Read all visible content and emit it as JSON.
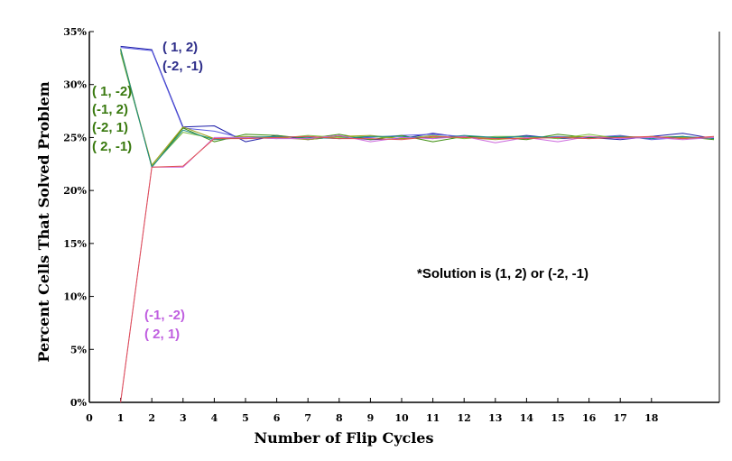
{
  "chart_data": {
    "type": "line",
    "title": "",
    "xlabel": "Number of Flip Cycles",
    "ylabel": "Percent Cells That Solved Problem",
    "xlim": [
      0,
      20
    ],
    "ylim": [
      0,
      35
    ],
    "x_ticks": [
      "0",
      "1",
      "2",
      "3",
      "4",
      "5",
      "6",
      "7",
      "8",
      "9",
      "10",
      "11",
      "12",
      "13",
      "14",
      "15",
      "16",
      "17",
      "18"
    ],
    "y_ticks": [
      {
        "value": 35,
        "label": "35%"
      },
      {
        "value": 30,
        "label": "30%"
      },
      {
        "value": 25,
        "label": "25%"
      },
      {
        "value": 20,
        "label": "20%"
      },
      {
        "value": 15,
        "label": "15%"
      },
      {
        "value": 10,
        "label": "10%"
      },
      {
        "value": 5,
        "label": "5%"
      },
      {
        "value": 0,
        "label": "0%"
      }
    ],
    "grid": false,
    "x": [
      1,
      2,
      3,
      4,
      5,
      6,
      7,
      8,
      9,
      10,
      11,
      12,
      13,
      14,
      15,
      16,
      17,
      18,
      19,
      20
    ],
    "series": [
      {
        "color": "#1c1ca8",
        "values": [
          33.6,
          33.3,
          26.0,
          26.1,
          24.6,
          25.2,
          24.8,
          25.1,
          24.8,
          24.9,
          25.4,
          25.0,
          24.9,
          25.2,
          24.9,
          25.0,
          24.8,
          25.1,
          25.4,
          24.9
        ]
      },
      {
        "color": "#5a5ae0",
        "values": [
          33.5,
          33.2,
          25.9,
          25.6,
          24.9,
          25.0,
          25.1,
          24.9,
          25.0,
          25.2,
          25.3,
          25.1,
          25.0,
          24.9,
          25.1,
          25.0,
          25.2,
          24.8,
          25.0,
          25.0
        ]
      },
      {
        "color": "#3a8c0a",
        "values": [
          33.4,
          22.2,
          25.9,
          24.6,
          25.3,
          25.2,
          24.9,
          25.3,
          24.8,
          25.2,
          24.6,
          25.1,
          25.0,
          24.8,
          25.3,
          25.0,
          25.1,
          25.0,
          25.1,
          24.8
        ]
      },
      {
        "color": "#7fbf3f",
        "values": [
          33.0,
          22.3,
          25.5,
          24.9,
          25.0,
          24.9,
          25.2,
          25.0,
          25.1,
          24.9,
          25.2,
          24.9,
          25.1,
          25.1,
          24.9,
          25.3,
          24.9,
          25.1,
          24.9,
          25.0
        ]
      },
      {
        "color": "#9e9e1a",
        "values": [
          33.2,
          22.4,
          26.0,
          24.9,
          25.1,
          25.0,
          24.8,
          25.1,
          25.2,
          24.9,
          25.0,
          25.0,
          24.8,
          25.0,
          25.0,
          25.1,
          25.0,
          25.0,
          25.0,
          25.0
        ]
      },
      {
        "color": "#1a8a8a",
        "values": [
          33.3,
          22.2,
          25.7,
          24.8,
          25.0,
          25.1,
          25.0,
          24.9,
          25.1,
          25.1,
          24.9,
          25.2,
          25.0,
          25.1,
          25.0,
          24.9,
          25.1,
          24.9,
          25.1,
          24.9
        ]
      },
      {
        "color": "#cc66dd",
        "values": [
          0.0,
          22.2,
          22.2,
          25.0,
          25.0,
          24.9,
          24.9,
          25.2,
          24.6,
          25.0,
          24.9,
          25.1,
          24.5,
          25.0,
          24.6,
          25.1,
          24.9,
          25.0,
          24.8,
          25.0
        ]
      },
      {
        "color": "#e05050",
        "values": [
          0.0,
          22.2,
          22.3,
          24.9,
          24.9,
          25.0,
          25.1,
          24.9,
          24.9,
          24.8,
          25.1,
          25.0,
          24.9,
          24.9,
          25.0,
          24.9,
          25.0,
          25.1,
          24.9,
          25.1
        ]
      }
    ],
    "annotations": {
      "blue_group": {
        "color": "#2e2e8a",
        "lines": [
          "( 1,  2)",
          "(-2, -1)"
        ]
      },
      "green_group": {
        "color": "#3a7a10",
        "lines": [
          "( 1, -2)",
          "(-1,  2)",
          "(-2,  1)",
          "( 2, -1)"
        ]
      },
      "pink_group": {
        "color": "#c060e0",
        "lines": [
          "(-1, -2)",
          "( 2,  1)"
        ]
      },
      "solution_note": "*Solution is (1, 2) or (-2, -1)"
    }
  }
}
